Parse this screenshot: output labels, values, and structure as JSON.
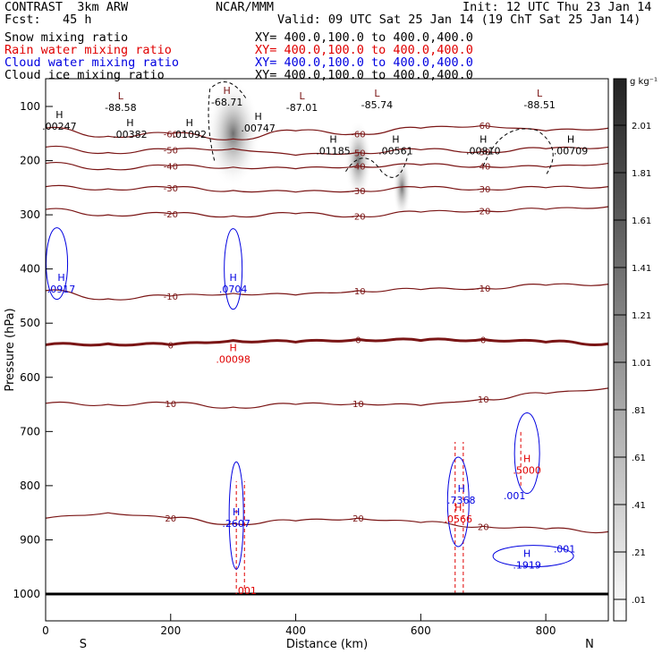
{
  "header": {
    "model": "CONTRAST  3km ARW",
    "fcst": "Fcst:   45 h",
    "org": "NCAR/MMM",
    "init": "Init: 12 UTC Thu 23 Jan 14",
    "valid": "Valid: 09 UTC Sat 25 Jan 14 (19 ChT Sat 25 Jan 14)",
    "fields": [
      {
        "name": "Snow mixing ratio",
        "xy": "XY= 400.0,100.0 to 400.0,400.0",
        "color": "#000000"
      },
      {
        "name": "Rain water mixing ratio",
        "xy": "XY= 400.0,100.0 to 400.0,400.0",
        "color": "#e00000"
      },
      {
        "name": "Cloud water mixing ratio",
        "xy": "XY= 400.0,100.0 to 400.0,400.0",
        "color": "#0000e0"
      },
      {
        "name": "Cloud ice mixing ratio",
        "xy": "XY= 400.0,100.0 to 400.0,400.0",
        "color": "#000000"
      }
    ]
  },
  "chart_data": {
    "type": "cross-section",
    "xlabel": "Distance (km)",
    "ylabel": "Pressure (hPa)",
    "xlim": [
      0,
      900
    ],
    "ylim": [
      1050,
      50
    ],
    "xticks": [
      0,
      200,
      400,
      600,
      800
    ],
    "yticks": [
      100,
      200,
      300,
      400,
      500,
      600,
      700,
      800,
      900,
      1000
    ],
    "ends": {
      "left": "S",
      "right": "N"
    },
    "colorbar": {
      "unit": "g kg⁻¹",
      "ticks": [
        "2.01",
        "1.81",
        "1.61",
        "1.41",
        "1.21",
        "1.01",
        ".81",
        ".61",
        ".41",
        ".21",
        ".01"
      ]
    },
    "temperature_contours": [
      {
        "value": -60,
        "levels": [
          [
            0,
            140
          ],
          [
            100,
            155
          ],
          [
            200,
            150
          ],
          [
            300,
            160
          ],
          [
            400,
            145
          ],
          [
            500,
            150
          ],
          [
            600,
            140
          ],
          [
            700,
            135
          ],
          [
            800,
            145
          ],
          [
            900,
            140
          ]
        ]
      },
      {
        "value": -50,
        "levels": [
          [
            0,
            175
          ],
          [
            100,
            185
          ],
          [
            200,
            180
          ],
          [
            300,
            178
          ],
          [
            400,
            190
          ],
          [
            500,
            185
          ],
          [
            600,
            180
          ],
          [
            700,
            183
          ],
          [
            800,
            178
          ],
          [
            900,
            175
          ]
        ]
      },
      {
        "value": -40,
        "levels": [
          [
            0,
            205
          ],
          [
            100,
            215
          ],
          [
            200,
            210
          ],
          [
            300,
            212
          ],
          [
            400,
            215
          ],
          [
            500,
            210
          ],
          [
            600,
            208
          ],
          [
            700,
            210
          ],
          [
            800,
            212
          ],
          [
            900,
            205
          ]
        ]
      },
      {
        "value": -30,
        "levels": [
          [
            0,
            248
          ],
          [
            100,
            252
          ],
          [
            200,
            250
          ],
          [
            300,
            255
          ],
          [
            400,
            258
          ],
          [
            500,
            255
          ],
          [
            600,
            250
          ],
          [
            700,
            252
          ],
          [
            800,
            250
          ],
          [
            900,
            248
          ]
        ]
      },
      {
        "value": -20,
        "levels": [
          [
            0,
            290
          ],
          [
            100,
            300
          ],
          [
            200,
            298
          ],
          [
            300,
            302
          ],
          [
            400,
            298
          ],
          [
            500,
            302
          ],
          [
            600,
            295
          ],
          [
            700,
            292
          ],
          [
            800,
            290
          ],
          [
            900,
            285
          ]
        ]
      },
      {
        "value": -10,
        "levels": [
          [
            0,
            440
          ],
          [
            100,
            455
          ],
          [
            200,
            450
          ],
          [
            300,
            445
          ],
          [
            400,
            448
          ],
          [
            500,
            440
          ],
          [
            600,
            438
          ],
          [
            700,
            435
          ],
          [
            800,
            430
          ],
          [
            900,
            428
          ]
        ]
      },
      {
        "value": 0,
        "levels": [
          [
            0,
            540
          ],
          [
            100,
            538
          ],
          [
            200,
            540
          ],
          [
            300,
            532
          ],
          [
            400,
            535
          ],
          [
            500,
            530
          ],
          [
            600,
            532
          ],
          [
            700,
            530
          ],
          [
            800,
            535
          ],
          [
            900,
            538
          ]
        ]
      },
      {
        "value": 10,
        "levels": [
          [
            0,
            648
          ],
          [
            100,
            650
          ],
          [
            200,
            648
          ],
          [
            300,
            655
          ],
          [
            400,
            650
          ],
          [
            500,
            648
          ],
          [
            600,
            652
          ],
          [
            700,
            640
          ],
          [
            800,
            630
          ],
          [
            900,
            620
          ]
        ]
      },
      {
        "value": 20,
        "levels": [
          [
            0,
            860
          ],
          [
            100,
            850
          ],
          [
            200,
            860
          ],
          [
            300,
            870
          ],
          [
            400,
            865
          ],
          [
            500,
            860
          ],
          [
            600,
            868
          ],
          [
            700,
            875
          ],
          [
            800,
            880
          ],
          [
            900,
            885
          ]
        ]
      }
    ],
    "min_labels": [
      {
        "text": "L",
        "value": "-88.58",
        "x": 120,
        "p": 90
      },
      {
        "text": "H",
        "value": "-68.71",
        "x": 290,
        "p": 80
      },
      {
        "text": "L",
        "value": "-87.01",
        "x": 410,
        "p": 90
      },
      {
        "text": "L",
        "value": "-85.74",
        "x": 530,
        "p": 85
      },
      {
        "text": "L",
        "value": "-88.51",
        "x": 790,
        "p": 85
      }
    ],
    "max_labels": [
      {
        "text": "H",
        "value": ".00247",
        "x": 22,
        "p": 125,
        "color": "#000000"
      },
      {
        "text": "H",
        "value": ".00382",
        "x": 135,
        "p": 140,
        "color": "#000000"
      },
      {
        "text": "H",
        "value": ".01092",
        "x": 230,
        "p": 140,
        "color": "#000000"
      },
      {
        "text": "H",
        "value": ".00747",
        "x": 340,
        "p": 128,
        "color": "#000000"
      },
      {
        "text": "H",
        "value": ".01185",
        "x": 460,
        "p": 170,
        "color": "#000000"
      },
      {
        "text": "H",
        "value": ".00561",
        "x": 560,
        "p": 170,
        "color": "#000000"
      },
      {
        "text": "H",
        "value": ".00810",
        "x": 700,
        "p": 170,
        "color": "#000000"
      },
      {
        "text": "H",
        "value": ".00709",
        "x": 840,
        "p": 170,
        "color": "#000000"
      },
      {
        "text": "H",
        "value": ".0917",
        "x": 25,
        "p": 425,
        "color": "#0000e0"
      },
      {
        "text": "H",
        "value": ".0704",
        "x": 300,
        "p": 425,
        "color": "#0000e0"
      },
      {
        "text": "H",
        "value": ".00098",
        "x": 300,
        "p": 555,
        "color": "#e00000"
      },
      {
        "text": "H",
        "value": ".2607",
        "x": 305,
        "p": 858,
        "color": "#0000e0"
      },
      {
        "text": "",
        "value": ".001",
        "x": 320,
        "p": 982,
        "color": "#e00000"
      },
      {
        "text": "H",
        "value": ".7368",
        "x": 665,
        "p": 815,
        "color": "#0000e0"
      },
      {
        "text": "H",
        "value": ".0566",
        "x": 660,
        "p": 850,
        "color": "#e00000"
      },
      {
        "text": "H",
        "value": ".5000",
        "x": 770,
        "p": 760,
        "color": "#e00000"
      },
      {
        "text": "",
        "value": ".001",
        "x": 750,
        "p": 807,
        "color": "#0000e0"
      },
      {
        "text": "H",
        "value": ".1919",
        "x": 770,
        "p": 935,
        "color": "#0000e0"
      },
      {
        "text": "",
        "value": ".001",
        "x": 830,
        "p": 905,
        "color": "#0000e0"
      }
    ]
  }
}
